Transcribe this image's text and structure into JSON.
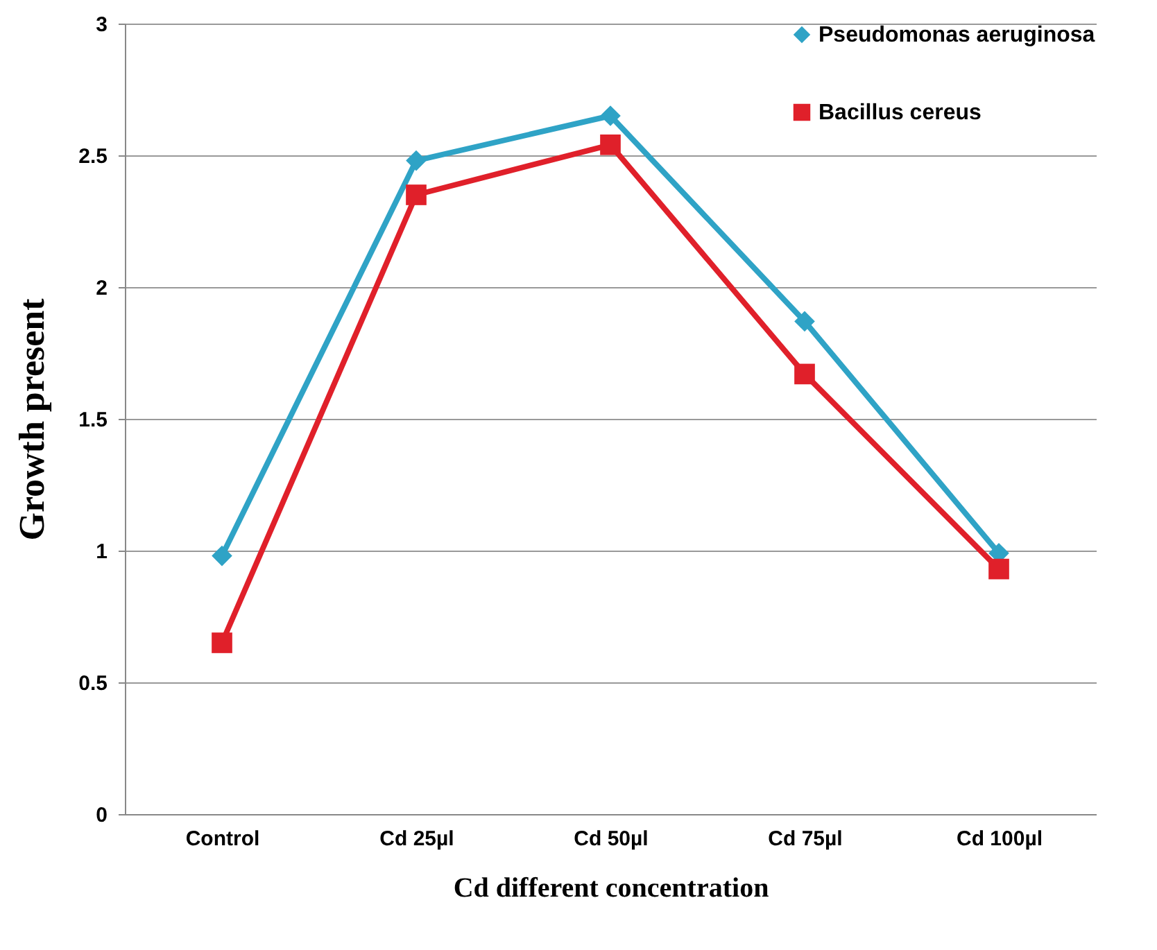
{
  "chart_data": {
    "type": "line",
    "xlabel": "Cd different concentration",
    "ylabel": "Growth present",
    "categories": [
      "Control",
      "Cd 25µl",
      "Cd 50µl",
      "Cd 75µl",
      "Cd 100µl"
    ],
    "series": [
      {
        "name": "Pseudomonas aeruginosa",
        "color": "#2fa3c6",
        "marker": "diamond",
        "values": [
          0.98,
          2.48,
          2.65,
          1.87,
          0.99
        ]
      },
      {
        "name": "Bacillus cereus",
        "color": "#e0202a",
        "marker": "square",
        "values": [
          0.65,
          2.35,
          2.54,
          1.67,
          0.93
        ]
      }
    ],
    "ylim": [
      0,
      3
    ],
    "yticks": [
      0,
      0.5,
      1,
      1.5,
      2,
      2.5,
      3
    ],
    "grid": "y",
    "legend": "top right",
    "line_style": "solid"
  }
}
